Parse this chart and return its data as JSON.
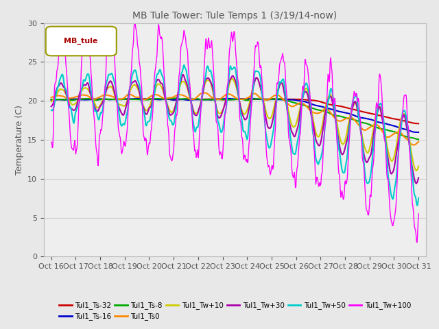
{
  "title": "MB Tule Tower: Tule Temps 1 (3/19/14-now)",
  "ylabel": "Temperature (C)",
  "ylim": [
    0,
    30
  ],
  "x_tick_labels": [
    "Oct 16",
    "Oct 17",
    "Oct 18",
    "Oct 19",
    "Oct 20",
    "Oct 21",
    "Oct 22",
    "Oct 23",
    "Oct 24",
    "Oct 25",
    "Oct 26",
    "Oct 27",
    "Oct 28",
    "Oct 29",
    "Oct 30",
    "Oct 31"
  ],
  "legend_label": "MB_tule",
  "series": [
    {
      "label": "Tul1_Ts-32",
      "color": "#cc0000",
      "lw": 1.5
    },
    {
      "label": "Tul1_Ts-16",
      "color": "#0000cc",
      "lw": 1.5
    },
    {
      "label": "Tul1_Ts-8",
      "color": "#00aa00",
      "lw": 1.5
    },
    {
      "label": "Tul1_Ts0",
      "color": "#ff8800",
      "lw": 1.5
    },
    {
      "label": "Tul1_Tw+10",
      "color": "#cccc00",
      "lw": 1.5
    },
    {
      "label": "Tul1_Tw+30",
      "color": "#aa00aa",
      "lw": 1.5
    },
    {
      "label": "Tul1_Tw+50",
      "color": "#00cccc",
      "lw": 1.5
    },
    {
      "label": "Tul1_Tw+100",
      "color": "#ff00ff",
      "lw": 1.0
    }
  ],
  "bg_color": "#e8e8e8",
  "plot_bg": "#eeeeee",
  "title_color": "#555555",
  "label_color": "#555555"
}
